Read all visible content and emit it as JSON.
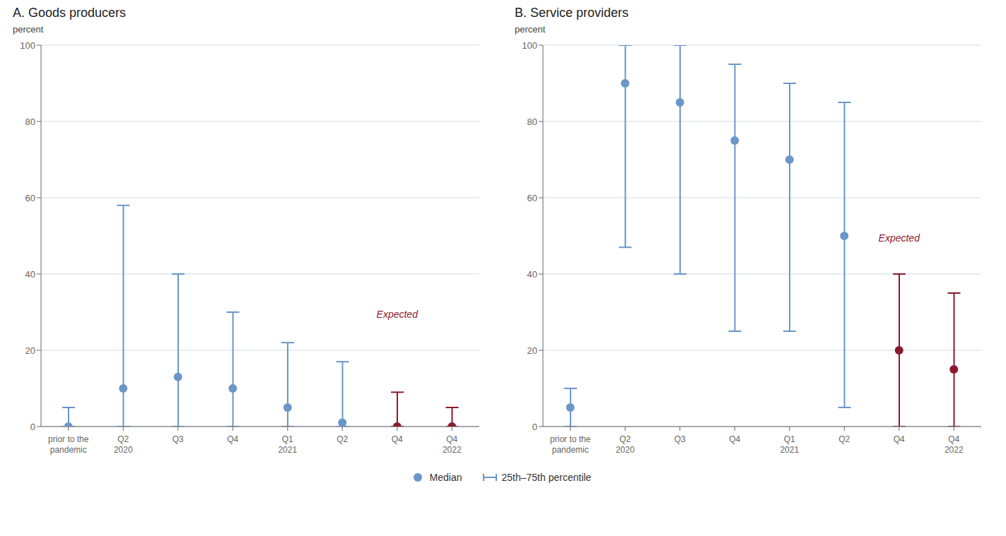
{
  "chart_data": [
    {
      "type": "scatter",
      "title": "A. Goods producers",
      "ylabel": "percent",
      "categories": [
        "prior to the\n pandemic",
        "Q2\n2020",
        "Q3",
        "Q4",
        "Q1\n2021",
        "Q2",
        "Q4",
        "Q4\n2022"
      ],
      "series": [
        {
          "name": "Median",
          "type": "scatter",
          "color": "#6b96c8",
          "colors": [
            "#6b96c8",
            "#6b96c8",
            "#6b96c8",
            "#6b96c8",
            "#6b96c8",
            "#6b96c8",
            "#8b1a2e",
            "#8b1a2e"
          ],
          "values": [
            0,
            10,
            13,
            10,
            5,
            1,
            0,
            0
          ]
        },
        {
          "name": "25th–75th percentile",
          "type": "range",
          "color": "#6b96c8",
          "colors": [
            "#6b96c8",
            "#6b96c8",
            "#6b96c8",
            "#6b96c8",
            "#6b96c8",
            "#6b96c8",
            "#8b1a2e",
            "#8b1a2e"
          ],
          "low": [
            0,
            0,
            0,
            0,
            0,
            0,
            0,
            0
          ],
          "high": [
            5,
            58,
            40,
            30,
            22,
            17,
            9,
            5
          ]
        }
      ],
      "annotations": [
        {
          "text": "Expected",
          "x": 6,
          "y": 28,
          "color": "#8b1a2e"
        }
      ],
      "ylim": [
        0,
        100
      ],
      "yticks": [
        0,
        20,
        40,
        60,
        80,
        100
      ],
      "grid": true,
      "legend": "bottom"
    },
    {
      "type": "scatter",
      "title": "B. Service providers",
      "ylabel": "percent",
      "categories": [
        "prior to the\n pandemic",
        "Q2\n2020",
        "Q3",
        "Q4",
        "Q1\n2021",
        "Q2",
        "Q4",
        "Q4\n2022"
      ],
      "series": [
        {
          "name": "Median",
          "type": "scatter",
          "color": "#6b96c8",
          "colors": [
            "#6b96c8",
            "#6b96c8",
            "#6b96c8",
            "#6b96c8",
            "#6b96c8",
            "#6b96c8",
            "#8b1a2e",
            "#8b1a2e"
          ],
          "values": [
            5,
            90,
            85,
            75,
            70,
            50,
            20,
            15
          ]
        },
        {
          "name": "25th–75th percentile",
          "type": "range",
          "color": "#6b96c8",
          "colors": [
            "#6b96c8",
            "#6b96c8",
            "#6b96c8",
            "#6b96c8",
            "#6b96c8",
            "#6b96c8",
            "#8b1a2e",
            "#8b1a2e"
          ],
          "low": [
            0,
            47,
            40,
            25,
            25,
            5,
            0,
            0
          ],
          "high": [
            10,
            100,
            100,
            95,
            90,
            85,
            40,
            35
          ]
        }
      ],
      "annotations": [
        {
          "text": "Expected",
          "x": 6,
          "y": 48,
          "color": "#8b1a2e"
        }
      ],
      "ylim": [
        0,
        100
      ],
      "yticks": [
        0,
        20,
        40,
        60,
        80,
        100
      ],
      "grid": true,
      "legend": "bottom"
    }
  ]
}
